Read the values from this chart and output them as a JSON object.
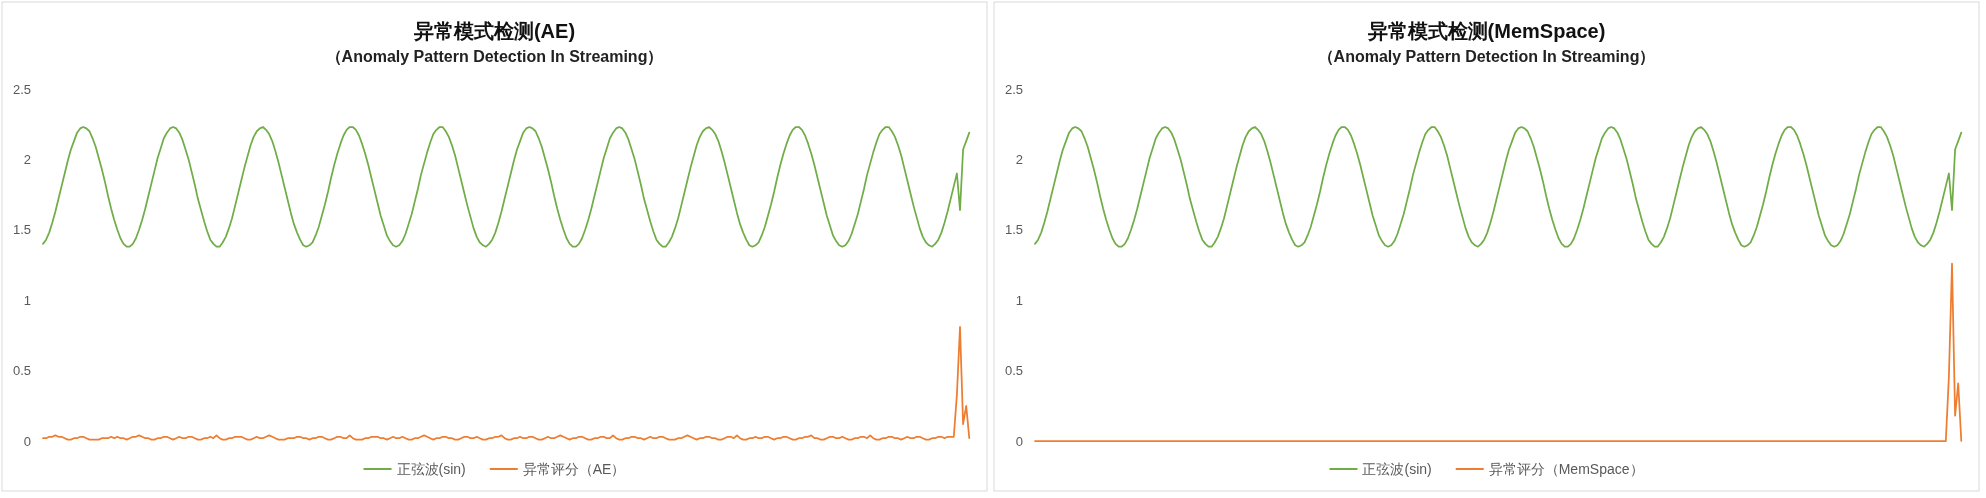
{
  "chart_data": [
    {
      "type": "line",
      "title": "异常模式检测(AE)",
      "subtitle": "（Anomaly Pattern Detection In Streaming）",
      "categories": [
        null,
        null,
        null,
        null,
        null,
        null,
        null,
        null,
        null,
        null,
        null,
        null,
        null,
        null,
        null,
        null,
        null,
        null,
        null,
        null,
        null,
        null,
        null,
        null,
        null,
        null,
        null,
        null,
        null,
        null,
        null,
        null,
        null,
        null,
        null,
        null,
        null,
        null,
        null,
        null,
        null,
        null,
        null,
        null,
        null,
        null,
        null,
        null,
        null,
        null,
        null,
        null,
        null,
        null,
        null,
        null,
        null,
        null,
        null,
        null,
        null,
        null,
        null,
        null,
        null,
        null,
        null,
        null,
        null,
        null,
        null,
        null,
        null,
        null,
        null,
        null,
        null,
        null,
        null,
        null,
        null,
        null,
        null,
        null,
        null,
        null,
        null,
        null,
        null,
        null,
        null,
        null,
        null,
        null,
        null,
        null,
        null,
        null,
        null,
        null,
        null,
        null,
        null,
        null,
        null,
        null,
        null,
        null,
        null,
        null,
        null,
        null,
        null,
        null,
        null,
        null,
        null,
        null,
        null,
        null,
        null,
        null,
        null,
        null,
        null,
        null,
        null,
        null,
        null,
        null,
        null,
        null,
        null,
        null,
        null,
        null,
        null,
        null,
        null,
        null,
        null,
        null,
        null,
        null,
        null,
        null,
        null,
        null,
        null,
        null,
        null,
        null,
        null,
        null,
        null,
        null,
        null,
        null,
        null,
        null,
        null,
        null,
        null,
        null,
        null,
        null,
        null,
        null,
        null,
        null,
        null,
        null,
        null,
        null,
        null,
        null,
        null,
        null,
        null,
        null,
        null,
        null,
        null,
        null,
        null,
        null,
        null,
        null,
        null,
        null,
        null,
        null,
        null,
        null,
        null,
        null,
        null,
        null,
        null,
        null,
        null,
        null,
        null,
        null,
        null,
        null,
        null,
        null,
        null,
        null,
        null,
        null,
        null,
        null,
        null,
        null,
        null,
        null,
        null,
        null,
        null,
        null,
        null,
        null,
        null,
        null,
        null,
        null,
        null,
        null,
        null,
        null,
        null,
        null,
        null,
        null,
        null,
        null,
        null,
        null,
        null,
        null,
        null,
        null,
        null,
        null,
        null,
        null,
        null,
        null,
        null,
        null,
        null,
        null,
        null,
        null,
        null,
        null,
        null,
        null,
        null,
        null,
        null,
        null,
        null,
        null,
        null,
        null,
        null,
        null,
        null,
        null,
        null,
        null,
        null,
        null,
        null,
        null,
        null,
        null,
        null,
        null,
        null,
        null,
        null,
        null,
        null,
        null,
        null,
        null,
        null,
        null,
        null,
        null,
        null,
        null,
        null,
        null,
        null,
        null
      ],
      "series": [
        {
          "name": "正弦波(sin)",
          "color": "#70ad47",
          "values": [
            1.4,
            1.43,
            1.48,
            1.55,
            1.63,
            1.72,
            1.81,
            1.9,
            1.99,
            2.07,
            2.13,
            2.19,
            2.22,
            2.23,
            2.22,
            2.2,
            2.15,
            2.09,
            2.01,
            1.93,
            1.84,
            1.74,
            1.65,
            1.57,
            1.5,
            1.44,
            1.4,
            1.38,
            1.38,
            1.4,
            1.44,
            1.5,
            1.57,
            1.65,
            1.74,
            1.83,
            1.92,
            2.01,
            2.08,
            2.15,
            2.19,
            2.22,
            2.23,
            2.22,
            2.19,
            2.14,
            2.07,
            2.0,
            1.91,
            1.82,
            1.72,
            1.64,
            1.56,
            1.49,
            1.43,
            1.4,
            1.38,
            1.38,
            1.41,
            1.45,
            1.51,
            1.58,
            1.67,
            1.76,
            1.85,
            1.94,
            2.02,
            2.1,
            2.16,
            2.2,
            2.22,
            2.23,
            2.21,
            2.18,
            2.13,
            2.06,
            1.98,
            1.89,
            1.8,
            1.71,
            1.62,
            1.54,
            1.48,
            1.43,
            1.39,
            1.38,
            1.39,
            1.41,
            1.46,
            1.52,
            1.6,
            1.68,
            1.77,
            1.87,
            1.96,
            2.04,
            2.11,
            2.17,
            2.21,
            2.23,
            2.23,
            2.21,
            2.17,
            2.11,
            2.04,
            1.96,
            1.87,
            1.78,
            1.69,
            1.6,
            1.53,
            1.46,
            1.42,
            1.39,
            1.38,
            1.39,
            1.42,
            1.47,
            1.54,
            1.61,
            1.7,
            1.79,
            1.89,
            1.97,
            2.05,
            2.12,
            2.18,
            2.21,
            2.23,
            2.23,
            2.2,
            2.16,
            2.1,
            2.03,
            1.94,
            1.85,
            1.76,
            1.67,
            1.59,
            1.51,
            1.45,
            1.41,
            1.39,
            1.38,
            1.4,
            1.43,
            1.48,
            1.55,
            1.63,
            1.72,
            1.81,
            1.9,
            1.99,
            2.07,
            2.13,
            2.19,
            2.22,
            2.23,
            2.22,
            2.2,
            2.15,
            2.09,
            2.01,
            1.93,
            1.84,
            1.74,
            1.65,
            1.57,
            1.5,
            1.44,
            1.4,
            1.38,
            1.38,
            1.4,
            1.44,
            1.5,
            1.57,
            1.65,
            1.74,
            1.83,
            1.92,
            2.01,
            2.08,
            2.15,
            2.19,
            2.22,
            2.23,
            2.22,
            2.19,
            2.14,
            2.07,
            2.0,
            1.91,
            1.82,
            1.72,
            1.64,
            1.56,
            1.49,
            1.43,
            1.4,
            1.38,
            1.38,
            1.41,
            1.45,
            1.51,
            1.58,
            1.67,
            1.76,
            1.85,
            1.94,
            2.02,
            2.1,
            2.16,
            2.2,
            2.22,
            2.23,
            2.21,
            2.18,
            2.13,
            2.06,
            1.98,
            1.89,
            1.8,
            1.71,
            1.62,
            1.54,
            1.48,
            1.43,
            1.39,
            1.38,
            1.39,
            1.41,
            1.46,
            1.52,
            1.6,
            1.68,
            1.77,
            1.87,
            1.96,
            2.04,
            2.11,
            2.17,
            2.21,
            2.23,
            2.23,
            2.21,
            2.17,
            2.11,
            2.04,
            1.96,
            1.87,
            1.78,
            1.69,
            1.6,
            1.53,
            1.46,
            1.42,
            1.39,
            1.38,
            1.39,
            1.42,
            1.47,
            1.54,
            1.61,
            1.7,
            1.79,
            1.89,
            1.97,
            2.05,
            2.12,
            2.18,
            2.21,
            2.23,
            2.23,
            2.2,
            2.16,
            2.1,
            2.03,
            1.94,
            1.85,
            1.76,
            1.67,
            1.59,
            1.51,
            1.45,
            1.41,
            1.39,
            1.38,
            1.4,
            1.43,
            1.48,
            1.55,
            1.63,
            1.72,
            1.81,
            1.9,
            1.64,
            2.07,
            2.13,
            2.19
          ]
        },
        {
          "name": "异常评分（AE）",
          "color": "#ed7d31",
          "values": [
            0.02,
            0.02,
            0.03,
            0.03,
            0.04,
            0.03,
            0.03,
            0.02,
            0.01,
            0.01,
            0.02,
            0.02,
            0.03,
            0.03,
            0.02,
            0.01,
            0.01,
            0.01,
            0.01,
            0.02,
            0.02,
            0.02,
            0.03,
            0.02,
            0.03,
            0.02,
            0.02,
            0.01,
            0.02,
            0.03,
            0.03,
            0.04,
            0.03,
            0.02,
            0.02,
            0.01,
            0.01,
            0.02,
            0.02,
            0.03,
            0.03,
            0.02,
            0.01,
            0.02,
            0.03,
            0.02,
            0.02,
            0.03,
            0.03,
            0.02,
            0.01,
            0.01,
            0.02,
            0.02,
            0.03,
            0.02,
            0.04,
            0.02,
            0.01,
            0.01,
            0.02,
            0.02,
            0.03,
            0.03,
            0.03,
            0.02,
            0.01,
            0.01,
            0.02,
            0.03,
            0.02,
            0.02,
            0.03,
            0.04,
            0.03,
            0.02,
            0.01,
            0.01,
            0.01,
            0.02,
            0.02,
            0.02,
            0.03,
            0.03,
            0.02,
            0.02,
            0.01,
            0.02,
            0.02,
            0.03,
            0.03,
            0.02,
            0.01,
            0.01,
            0.02,
            0.03,
            0.03,
            0.02,
            0.02,
            0.04,
            0.02,
            0.01,
            0.01,
            0.01,
            0.02,
            0.02,
            0.03,
            0.03,
            0.03,
            0.02,
            0.02,
            0.01,
            0.02,
            0.03,
            0.02,
            0.02,
            0.03,
            0.02,
            0.01,
            0.01,
            0.02,
            0.02,
            0.03,
            0.04,
            0.03,
            0.02,
            0.01,
            0.02,
            0.02,
            0.03,
            0.03,
            0.02,
            0.02,
            0.01,
            0.01,
            0.02,
            0.03,
            0.03,
            0.02,
            0.02,
            0.03,
            0.02,
            0.01,
            0.01,
            0.02,
            0.02,
            0.03,
            0.03,
            0.04,
            0.02,
            0.01,
            0.01,
            0.02,
            0.02,
            0.03,
            0.02,
            0.02,
            0.03,
            0.03,
            0.02,
            0.01,
            0.01,
            0.02,
            0.03,
            0.02,
            0.02,
            0.03,
            0.04,
            0.03,
            0.02,
            0.01,
            0.02,
            0.02,
            0.03,
            0.03,
            0.02,
            0.01,
            0.01,
            0.02,
            0.02,
            0.03,
            0.03,
            0.02,
            0.02,
            0.04,
            0.02,
            0.01,
            0.01,
            0.02,
            0.02,
            0.03,
            0.03,
            0.02,
            0.02,
            0.01,
            0.02,
            0.03,
            0.02,
            0.02,
            0.03,
            0.03,
            0.02,
            0.01,
            0.01,
            0.01,
            0.02,
            0.02,
            0.03,
            0.04,
            0.03,
            0.02,
            0.01,
            0.02,
            0.02,
            0.03,
            0.03,
            0.02,
            0.02,
            0.01,
            0.01,
            0.02,
            0.03,
            0.03,
            0.02,
            0.04,
            0.02,
            0.01,
            0.01,
            0.02,
            0.02,
            0.03,
            0.02,
            0.02,
            0.03,
            0.03,
            0.02,
            0.01,
            0.02,
            0.02,
            0.03,
            0.03,
            0.02,
            0.01,
            0.01,
            0.02,
            0.02,
            0.03,
            0.03,
            0.04,
            0.02,
            0.02,
            0.01,
            0.01,
            0.02,
            0.03,
            0.03,
            0.02,
            0.02,
            0.03,
            0.02,
            0.01,
            0.01,
            0.02,
            0.02,
            0.03,
            0.03,
            0.02,
            0.04,
            0.02,
            0.01,
            0.01,
            0.02,
            0.02,
            0.03,
            0.03,
            0.02,
            0.02,
            0.01,
            0.02,
            0.03,
            0.02,
            0.02,
            0.03,
            0.03,
            0.02,
            0.01,
            0.01,
            0.02,
            0.02,
            0.03,
            0.03,
            0.02,
            0.03,
            0.03,
            0.03,
            0.33,
            0.81,
            0.12,
            0.25,
            0.02
          ]
        }
      ],
      "ylim": [
        0,
        2.5
      ],
      "yticks": [
        0,
        0.5,
        1,
        1.5,
        2,
        2.5
      ],
      "tick_labels": "y",
      "legend": "bottom"
    },
    {
      "type": "line",
      "title": "异常模式检测(MemSpace)",
      "subtitle": "（Anomaly Pattern Detection In Streaming）",
      "categories": [
        null,
        null,
        null,
        null,
        null,
        null,
        null,
        null,
        null,
        null,
        null,
        null,
        null,
        null,
        null,
        null,
        null,
        null,
        null,
        null,
        null,
        null,
        null,
        null,
        null,
        null,
        null,
        null,
        null,
        null,
        null,
        null,
        null,
        null,
        null,
        null,
        null,
        null,
        null,
        null,
        null,
        null,
        null,
        null,
        null,
        null,
        null,
        null,
        null,
        null,
        null,
        null,
        null,
        null,
        null,
        null,
        null,
        null,
        null,
        null,
        null,
        null,
        null,
        null,
        null,
        null,
        null,
        null,
        null,
        null,
        null,
        null,
        null,
        null,
        null,
        null,
        null,
        null,
        null,
        null,
        null,
        null,
        null,
        null,
        null,
        null,
        null,
        null,
        null,
        null,
        null,
        null,
        null,
        null,
        null,
        null,
        null,
        null,
        null,
        null,
        null,
        null,
        null,
        null,
        null,
        null,
        null,
        null,
        null,
        null,
        null,
        null,
        null,
        null,
        null,
        null,
        null,
        null,
        null,
        null,
        null,
        null,
        null,
        null,
        null,
        null,
        null,
        null,
        null,
        null,
        null,
        null,
        null,
        null,
        null,
        null,
        null,
        null,
        null,
        null,
        null,
        null,
        null,
        null,
        null,
        null,
        null,
        null,
        null,
        null,
        null,
        null,
        null,
        null,
        null,
        null,
        null,
        null,
        null,
        null,
        null,
        null,
        null,
        null,
        null,
        null,
        null,
        null,
        null,
        null,
        null,
        null,
        null,
        null,
        null,
        null,
        null,
        null,
        null,
        null,
        null,
        null,
        null,
        null,
        null,
        null,
        null,
        null,
        null,
        null,
        null,
        null,
        null,
        null,
        null,
        null,
        null,
        null,
        null,
        null,
        null,
        null,
        null,
        null,
        null,
        null,
        null,
        null,
        null,
        null,
        null,
        null,
        null,
        null,
        null,
        null,
        null,
        null,
        null,
        null,
        null,
        null,
        null,
        null,
        null,
        null,
        null,
        null,
        null,
        null,
        null,
        null,
        null,
        null,
        null,
        null,
        null,
        null,
        null,
        null,
        null,
        null,
        null,
        null,
        null,
        null,
        null,
        null,
        null,
        null,
        null,
        null,
        null,
        null,
        null,
        null,
        null,
        null,
        null,
        null,
        null,
        null,
        null,
        null,
        null,
        null,
        null,
        null,
        null,
        null,
        null,
        null,
        null,
        null,
        null,
        null,
        null,
        null,
        null,
        null,
        null,
        null,
        null,
        null,
        null,
        null,
        null,
        null,
        null,
        null,
        null,
        null,
        null,
        null,
        null,
        null,
        null,
        null,
        null,
        null
      ],
      "series": [
        {
          "name": "正弦波(sin)",
          "color": "#70ad47",
          "values": [
            1.4,
            1.43,
            1.48,
            1.55,
            1.63,
            1.72,
            1.81,
            1.9,
            1.99,
            2.07,
            2.13,
            2.19,
            2.22,
            2.23,
            2.22,
            2.2,
            2.15,
            2.09,
            2.01,
            1.93,
            1.84,
            1.74,
            1.65,
            1.57,
            1.5,
            1.44,
            1.4,
            1.38,
            1.38,
            1.4,
            1.44,
            1.5,
            1.57,
            1.65,
            1.74,
            1.83,
            1.92,
            2.01,
            2.08,
            2.15,
            2.19,
            2.22,
            2.23,
            2.22,
            2.19,
            2.14,
            2.07,
            2.0,
            1.91,
            1.82,
            1.72,
            1.64,
            1.56,
            1.49,
            1.43,
            1.4,
            1.38,
            1.38,
            1.41,
            1.45,
            1.51,
            1.58,
            1.67,
            1.76,
            1.85,
            1.94,
            2.02,
            2.1,
            2.16,
            2.2,
            2.22,
            2.23,
            2.21,
            2.18,
            2.13,
            2.06,
            1.98,
            1.89,
            1.8,
            1.71,
            1.62,
            1.54,
            1.48,
            1.43,
            1.39,
            1.38,
            1.39,
            1.41,
            1.46,
            1.52,
            1.6,
            1.68,
            1.77,
            1.87,
            1.96,
            2.04,
            2.11,
            2.17,
            2.21,
            2.23,
            2.23,
            2.21,
            2.17,
            2.11,
            2.04,
            1.96,
            1.87,
            1.78,
            1.69,
            1.6,
            1.53,
            1.46,
            1.42,
            1.39,
            1.38,
            1.39,
            1.42,
            1.47,
            1.54,
            1.61,
            1.7,
            1.79,
            1.89,
            1.97,
            2.05,
            2.12,
            2.18,
            2.21,
            2.23,
            2.23,
            2.2,
            2.16,
            2.1,
            2.03,
            1.94,
            1.85,
            1.76,
            1.67,
            1.59,
            1.51,
            1.45,
            1.41,
            1.39,
            1.38,
            1.4,
            1.43,
            1.48,
            1.55,
            1.63,
            1.72,
            1.81,
            1.9,
            1.99,
            2.07,
            2.13,
            2.19,
            2.22,
            2.23,
            2.22,
            2.2,
            2.15,
            2.09,
            2.01,
            1.93,
            1.84,
            1.74,
            1.65,
            1.57,
            1.5,
            1.44,
            1.4,
            1.38,
            1.38,
            1.4,
            1.44,
            1.5,
            1.57,
            1.65,
            1.74,
            1.83,
            1.92,
            2.01,
            2.08,
            2.15,
            2.19,
            2.22,
            2.23,
            2.22,
            2.19,
            2.14,
            2.07,
            2.0,
            1.91,
            1.82,
            1.72,
            1.64,
            1.56,
            1.49,
            1.43,
            1.4,
            1.38,
            1.38,
            1.41,
            1.45,
            1.51,
            1.58,
            1.67,
            1.76,
            1.85,
            1.94,
            2.02,
            2.1,
            2.16,
            2.2,
            2.22,
            2.23,
            2.21,
            2.18,
            2.13,
            2.06,
            1.98,
            1.89,
            1.8,
            1.71,
            1.62,
            1.54,
            1.48,
            1.43,
            1.39,
            1.38,
            1.39,
            1.41,
            1.46,
            1.52,
            1.6,
            1.68,
            1.77,
            1.87,
            1.96,
            2.04,
            2.11,
            2.17,
            2.21,
            2.23,
            2.23,
            2.21,
            2.17,
            2.11,
            2.04,
            1.96,
            1.87,
            1.78,
            1.69,
            1.6,
            1.53,
            1.46,
            1.42,
            1.39,
            1.38,
            1.39,
            1.42,
            1.47,
            1.54,
            1.61,
            1.7,
            1.79,
            1.89,
            1.97,
            2.05,
            2.12,
            2.18,
            2.21,
            2.23,
            2.23,
            2.2,
            2.16,
            2.1,
            2.03,
            1.94,
            1.85,
            1.76,
            1.67,
            1.59,
            1.51,
            1.45,
            1.41,
            1.39,
            1.38,
            1.4,
            1.43,
            1.48,
            1.55,
            1.63,
            1.72,
            1.81,
            1.9,
            1.64,
            2.07,
            2.13,
            2.19
          ]
        },
        {
          "name": "异常评分（MemSpace）",
          "color": "#ed7d31",
          "values": [
            0,
            0,
            0,
            0,
            0,
            0,
            0,
            0,
            0,
            0,
            0,
            0,
            0,
            0,
            0,
            0,
            0,
            0,
            0,
            0,
            0,
            0,
            0,
            0,
            0,
            0,
            0,
            0,
            0,
            0,
            0,
            0,
            0,
            0,
            0,
            0,
            0,
            0,
            0,
            0,
            0,
            0,
            0,
            0,
            0,
            0,
            0,
            0,
            0,
            0,
            0,
            0,
            0,
            0,
            0,
            0,
            0,
            0,
            0,
            0,
            0,
            0,
            0,
            0,
            0,
            0,
            0,
            0,
            0,
            0,
            0,
            0,
            0,
            0,
            0,
            0,
            0,
            0,
            0,
            0,
            0,
            0,
            0,
            0,
            0,
            0,
            0,
            0,
            0,
            0,
            0,
            0,
            0,
            0,
            0,
            0,
            0,
            0,
            0,
            0,
            0,
            0,
            0,
            0,
            0,
            0,
            0,
            0,
            0,
            0,
            0,
            0,
            0,
            0,
            0,
            0,
            0,
            0,
            0,
            0,
            0,
            0,
            0,
            0,
            0,
            0,
            0,
            0,
            0,
            0,
            0,
            0,
            0,
            0,
            0,
            0,
            0,
            0,
            0,
            0,
            0,
            0,
            0,
            0,
            0,
            0,
            0,
            0,
            0,
            0,
            0,
            0,
            0,
            0,
            0,
            0,
            0,
            0,
            0,
            0,
            0,
            0,
            0,
            0,
            0,
            0,
            0,
            0,
            0,
            0,
            0,
            0,
            0,
            0,
            0,
            0,
            0,
            0,
            0,
            0,
            0,
            0,
            0,
            0,
            0,
            0,
            0,
            0,
            0,
            0,
            0,
            0,
            0,
            0,
            0,
            0,
            0,
            0,
            0,
            0,
            0,
            0,
            0,
            0,
            0,
            0,
            0,
            0,
            0,
            0,
            0,
            0,
            0,
            0,
            0,
            0,
            0,
            0,
            0,
            0,
            0,
            0,
            0,
            0,
            0,
            0,
            0,
            0,
            0,
            0,
            0,
            0,
            0,
            0,
            0,
            0,
            0,
            0,
            0,
            0,
            0,
            0,
            0,
            0,
            0,
            0,
            0,
            0,
            0,
            0,
            0,
            0,
            0,
            0,
            0,
            0,
            0,
            0,
            0,
            0,
            0,
            0,
            0,
            0,
            0,
            0,
            0,
            0,
            0,
            0,
            0,
            0,
            0,
            0,
            0,
            0,
            0,
            0,
            0,
            0,
            0,
            0,
            0,
            0,
            0,
            0,
            0,
            0,
            0,
            0,
            0,
            0,
            0,
            0,
            0,
            0.46,
            1.26,
            0.18,
            0.41,
            0
          ]
        }
      ],
      "ylim": [
        0,
        2.5
      ],
      "yticks": [
        0,
        0.5,
        1,
        1.5,
        2,
        2.5
      ],
      "tick_labels": "y",
      "legend": "bottom"
    }
  ]
}
